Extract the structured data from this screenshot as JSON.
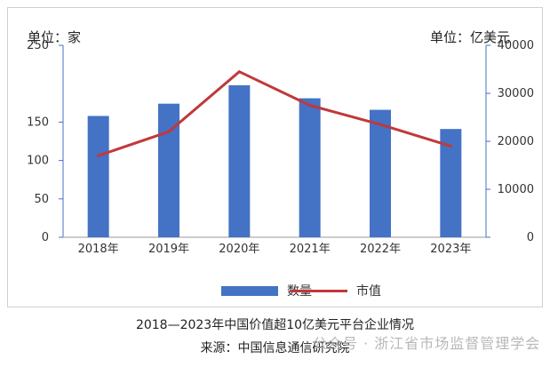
{
  "chart_data": {
    "type": "bar+line",
    "categories": [
      "2018年",
      "2019年",
      "2020年",
      "2021年",
      "2022年",
      "2023年"
    ],
    "series": [
      {
        "name": "数量",
        "type": "bar",
        "axis": "left",
        "color": "#4472c4",
        "values": [
          158,
          174,
          198,
          181,
          166,
          141
        ]
      },
      {
        "name": "市值",
        "type": "line",
        "axis": "right",
        "color": "#c0393b",
        "values": [
          17000,
          22000,
          34500,
          27500,
          23500,
          19000
        ]
      }
    ],
    "y_left": {
      "unit_label": "单位：家",
      "ticks": [
        0,
        50,
        100,
        150,
        250
      ],
      "range": [
        0,
        250
      ]
    },
    "y_right": {
      "unit_label": "单位：亿美元",
      "ticks": [
        0,
        10000,
        20000,
        30000,
        40000
      ],
      "range": [
        0,
        40000
      ]
    },
    "legend_position": "bottom"
  },
  "caption": {
    "title": "2018—2023年中国价值超10亿美元平台企业情况",
    "source": "来源：中国信息通信研究院"
  },
  "watermark": "公众号 · 浙江省市场监督管理学会"
}
